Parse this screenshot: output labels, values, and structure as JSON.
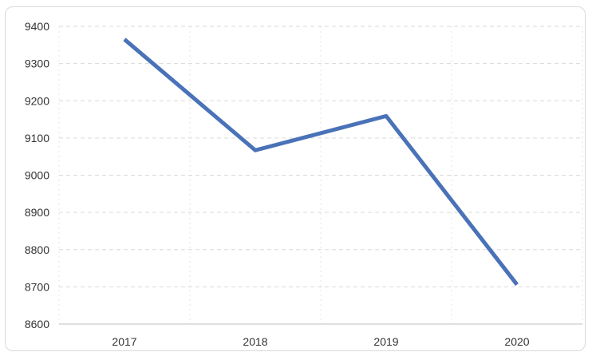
{
  "chart_data": {
    "type": "line",
    "title": "",
    "xlabel": "",
    "ylabel": "",
    "categories": [
      "2017",
      "2018",
      "2019",
      "2020"
    ],
    "series": [
      {
        "values": [
          9365,
          9067,
          9159,
          8706
        ]
      }
    ],
    "ylim": [
      8600,
      9400
    ],
    "yticks": [
      8600,
      8700,
      8800,
      8900,
      9000,
      9100,
      9200,
      9300,
      9400
    ],
    "grid": true,
    "legend": "none",
    "line_color": "#4a72b8"
  }
}
